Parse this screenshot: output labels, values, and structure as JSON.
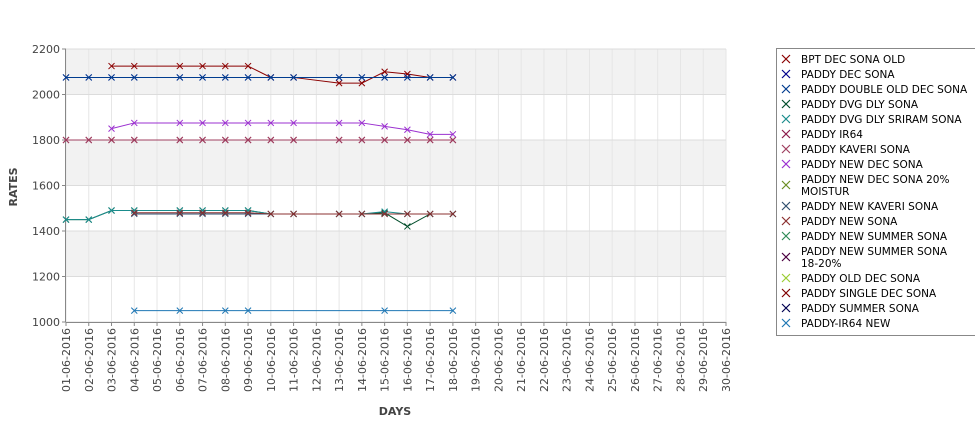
{
  "chart_data": {
    "type": "line",
    "title": "",
    "xlabel": "DAYS",
    "ylabel": "RATES",
    "ylim": [
      1000,
      2200
    ],
    "yticks": [
      1000,
      1200,
      1400,
      1600,
      1800,
      2000,
      2200
    ],
    "grid": true,
    "legend_position": "right",
    "categories": [
      "01-06-2016",
      "02-06-2016",
      "03-06-2016",
      "04-06-2016",
      "05-06-2016",
      "06-06-2016",
      "07-06-2016",
      "08-06-2016",
      "09-06-2016",
      "10-06-2016",
      "11-06-2016",
      "12-06-2016",
      "13-06-2016",
      "14-06-2016",
      "15-06-2016",
      "16-06-2016",
      "17-06-2016",
      "18-06-2016",
      "19-06-2016",
      "20-06-2016",
      "21-06-2016",
      "22-06-2016",
      "23-06-2016",
      "24-06-2016",
      "25-06-2016",
      "26-06-2016",
      "27-06-2016",
      "28-06-2016",
      "29-06-2016",
      "30-06-2016"
    ],
    "series": [
      {
        "name": "BPT DEC SONA OLD",
        "color": "#8b0000",
        "values": [
          null,
          null,
          2125,
          2125,
          null,
          2125,
          2125,
          2125,
          2125,
          2075,
          2075,
          null,
          2050,
          2050,
          2100,
          2090,
          2075,
          2075,
          null,
          null,
          null,
          null,
          null,
          null,
          null,
          null,
          null,
          null,
          null,
          null
        ]
      },
      {
        "name": "PADDY DEC SONA",
        "color": "#00008b",
        "values": [
          2075,
          2075,
          2075,
          2075,
          null,
          2075,
          2075,
          2075,
          2075,
          2075,
          2075,
          null,
          2075,
          2075,
          2075,
          2075,
          2075,
          2075,
          null,
          null,
          null,
          null,
          null,
          null,
          null,
          null,
          null,
          null,
          null,
          null
        ]
      },
      {
        "name": "PADDY DOUBLE OLD DEC SONA",
        "color": "#003c8f",
        "values": [
          2075,
          2075,
          2075,
          2075,
          null,
          2075,
          2075,
          2075,
          2075,
          2075,
          2075,
          null,
          2075,
          2075,
          2075,
          2075,
          2075,
          2075,
          null,
          null,
          null,
          null,
          null,
          null,
          null,
          null,
          null,
          null,
          null,
          null
        ]
      },
      {
        "name": "PADDY DVG DLY SONA",
        "color": "#004d2a",
        "values": [
          1450,
          1450,
          1490,
          1490,
          null,
          1490,
          1490,
          1490,
          1490,
          1475,
          1475,
          null,
          1475,
          1475,
          1480,
          1420,
          1475,
          1475,
          null,
          null,
          null,
          null,
          null,
          null,
          null,
          null,
          null,
          null,
          null,
          null
        ]
      },
      {
        "name": "PADDY DVG DLY SRIRAM SONA",
        "color": "#1a8c8c",
        "values": [
          1450,
          1450,
          1490,
          1490,
          null,
          1490,
          1490,
          1490,
          1490,
          1475,
          1475,
          null,
          1475,
          1475,
          1485,
          1475,
          1475,
          1475,
          null,
          null,
          null,
          null,
          null,
          null,
          null,
          null,
          null,
          null,
          null,
          null
        ]
      },
      {
        "name": "PADDY IR64",
        "color": "#8b1a4a",
        "values": [
          1800,
          1800,
          1800,
          1800,
          null,
          1800,
          1800,
          1800,
          1800,
          1800,
          1800,
          null,
          1800,
          1800,
          1800,
          1800,
          1800,
          1800,
          null,
          null,
          null,
          null,
          null,
          null,
          null,
          null,
          null,
          null,
          null,
          null
        ]
      },
      {
        "name": "PADDY KAVERI SONA",
        "color": "#a04060",
        "values": [
          1800,
          1800,
          1800,
          1800,
          null,
          1800,
          1800,
          1800,
          1800,
          1800,
          1800,
          null,
          1800,
          1800,
          1800,
          1800,
          1800,
          1800,
          null,
          null,
          null,
          null,
          null,
          null,
          null,
          null,
          null,
          null,
          null,
          null
        ]
      },
      {
        "name": "PADDY NEW DEC SONA",
        "color": "#9b30d0",
        "values": [
          null,
          null,
          1850,
          1875,
          null,
          1875,
          1875,
          1875,
          1875,
          1875,
          1875,
          null,
          1875,
          1875,
          1860,
          1845,
          1825,
          1825,
          null,
          null,
          null,
          null,
          null,
          null,
          null,
          null,
          null,
          null,
          null,
          null
        ]
      },
      {
        "name": "PADDY NEW DEC SONA 20% MOISTUR",
        "color": "#6b8e23",
        "values": [
          null,
          null,
          null,
          null,
          null,
          null,
          null,
          null,
          null,
          null,
          null,
          null,
          null,
          null,
          null,
          null,
          null,
          null,
          null,
          null,
          null,
          null,
          null,
          null,
          null,
          null,
          null,
          null,
          null,
          null
        ]
      },
      {
        "name": "PADDY NEW KAVERI SONA",
        "color": "#2f4f6f",
        "values": [
          null,
          null,
          null,
          1475,
          null,
          1475,
          1475,
          1475,
          1475,
          1475,
          1475,
          null,
          1475,
          1475,
          1475,
          1475,
          1475,
          1475,
          null,
          null,
          null,
          null,
          null,
          null,
          null,
          null,
          null,
          null,
          null,
          null
        ]
      },
      {
        "name": "PADDY NEW SONA",
        "color": "#8b3030",
        "values": [
          null,
          null,
          null,
          1480,
          null,
          1480,
          1480,
          1480,
          1480,
          1475,
          1475,
          null,
          1475,
          1475,
          1475,
          1475,
          1475,
          1475,
          null,
          null,
          null,
          null,
          null,
          null,
          null,
          null,
          null,
          null,
          null,
          null
        ]
      },
      {
        "name": "PADDY NEW SUMMER SONA",
        "color": "#2e8b57",
        "values": [
          null,
          null,
          null,
          null,
          null,
          null,
          null,
          null,
          null,
          null,
          null,
          null,
          null,
          null,
          null,
          null,
          null,
          null,
          null,
          null,
          null,
          null,
          null,
          null,
          null,
          null,
          null,
          null,
          null,
          null
        ]
      },
      {
        "name": "PADDY NEW SUMMER SONA 18-20%",
        "color": "#4b0040",
        "values": [
          null,
          null,
          null,
          null,
          null,
          null,
          null,
          null,
          null,
          null,
          null,
          null,
          null,
          null,
          null,
          null,
          null,
          null,
          null,
          null,
          null,
          null,
          null,
          null,
          null,
          null,
          null,
          null,
          null,
          null
        ]
      },
      {
        "name": "PADDY OLD DEC SONA",
        "color": "#9acd32",
        "values": [
          null,
          null,
          null,
          null,
          null,
          null,
          null,
          null,
          null,
          null,
          null,
          null,
          null,
          null,
          null,
          null,
          null,
          null,
          null,
          null,
          null,
          null,
          null,
          null,
          null,
          null,
          null,
          null,
          null,
          null
        ]
      },
      {
        "name": "PADDY SINGLE DEC SONA",
        "color": "#800000",
        "values": [
          null,
          null,
          null,
          null,
          null,
          null,
          null,
          null,
          null,
          null,
          null,
          null,
          null,
          null,
          null,
          null,
          null,
          null,
          null,
          null,
          null,
          null,
          null,
          null,
          null,
          null,
          null,
          null,
          null,
          null
        ]
      },
      {
        "name": "PADDY SUMMER SONA",
        "color": "#000050",
        "values": [
          null,
          null,
          null,
          null,
          null,
          null,
          null,
          null,
          null,
          null,
          null,
          null,
          null,
          null,
          null,
          null,
          null,
          null,
          null,
          null,
          null,
          null,
          null,
          null,
          null,
          null,
          null,
          null,
          null,
          null
        ]
      },
      {
        "name": "PADDY-IR64 NEW",
        "color": "#1f77b4",
        "values": [
          null,
          null,
          null,
          1050,
          null,
          1050,
          null,
          1050,
          1050,
          null,
          null,
          null,
          null,
          null,
          1050,
          null,
          null,
          1050,
          null,
          null,
          null,
          null,
          null,
          null,
          null,
          null,
          null,
          null,
          null,
          null
        ]
      }
    ]
  }
}
